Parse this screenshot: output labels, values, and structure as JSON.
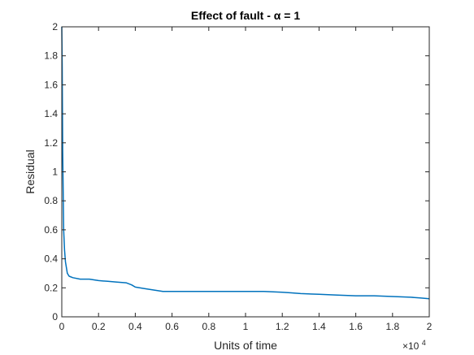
{
  "chart_data": {
    "type": "line",
    "title": "Effect of fault - α = 1",
    "xlabel": "Units of time",
    "ylabel": "Residual",
    "xlim": [
      0,
      20000
    ],
    "ylim": [
      0,
      2
    ],
    "x_ticks": [
      0,
      2000,
      4000,
      6000,
      8000,
      10000,
      12000,
      14000,
      16000,
      18000,
      20000
    ],
    "x_tick_labels": [
      "0",
      "0.2",
      "0.4",
      "0.6",
      "0.8",
      "1",
      "1.2",
      "1.4",
      "1.6",
      "1.8",
      "2"
    ],
    "x_multiplier_base": "×10",
    "x_multiplier_exp": "4",
    "y_ticks": [
      0,
      0.2,
      0.4,
      0.6,
      0.8,
      1,
      1.2,
      1.4,
      1.6,
      1.8,
      2
    ],
    "y_tick_labels": [
      "0",
      "0.2",
      "0.4",
      "0.6",
      "0.8",
      "1",
      "1.2",
      "1.4",
      "1.6",
      "1.8",
      "2"
    ],
    "grid": false,
    "series": [
      {
        "color": "#0072bd",
        "x": [
          0,
          20,
          50,
          100,
          150,
          200,
          300,
          400,
          600,
          1000,
          1500,
          2000,
          2500,
          3000,
          3500,
          3800,
          4000,
          4500,
          5000,
          5500,
          6000,
          7000,
          8000,
          9000,
          10000,
          11000,
          12000,
          12500,
          13000,
          14000,
          15000,
          16000,
          17000,
          18000,
          19000,
          19500,
          20000
        ],
        "y": [
          2.0,
          1.73,
          1.15,
          0.6,
          0.46,
          0.38,
          0.3,
          0.28,
          0.27,
          0.26,
          0.26,
          0.25,
          0.245,
          0.24,
          0.235,
          0.22,
          0.205,
          0.195,
          0.185,
          0.175,
          0.175,
          0.175,
          0.175,
          0.175,
          0.175,
          0.175,
          0.17,
          0.165,
          0.16,
          0.155,
          0.15,
          0.145,
          0.145,
          0.14,
          0.135,
          0.13,
          0.125
        ]
      }
    ]
  }
}
